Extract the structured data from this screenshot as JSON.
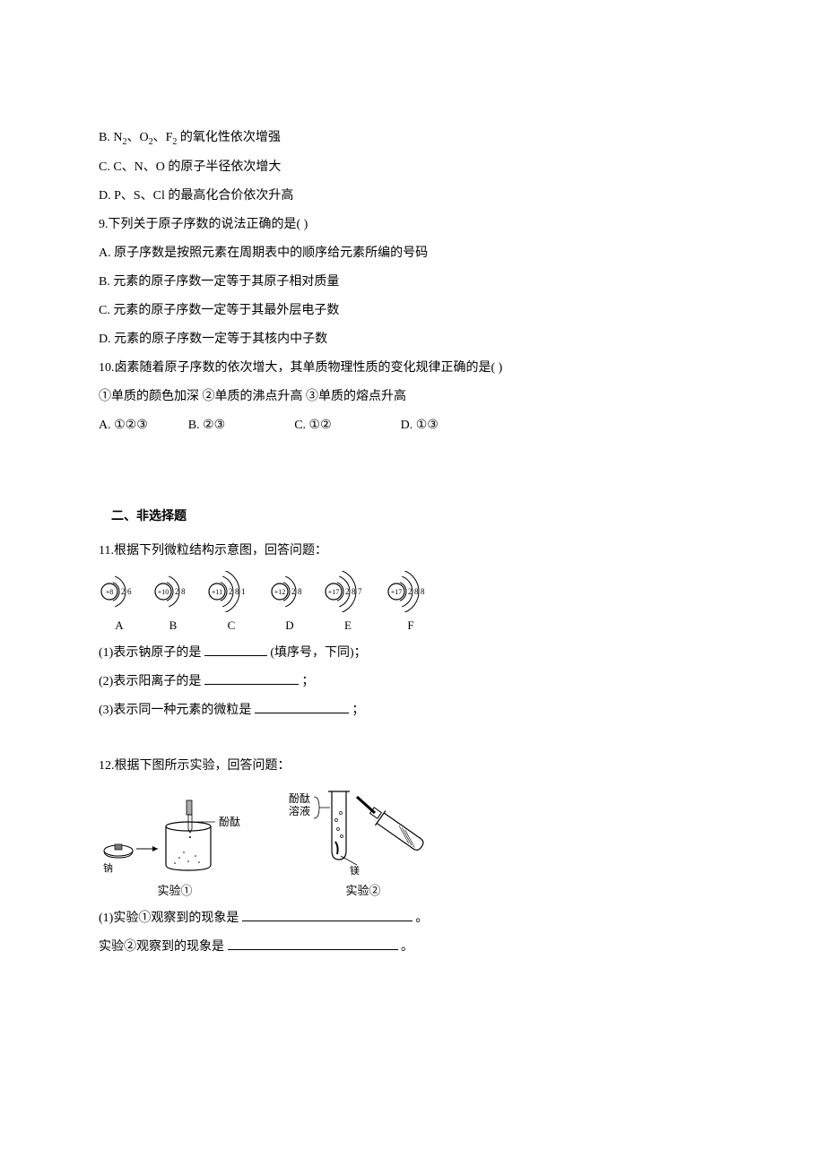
{
  "colors": {
    "text": "#000000",
    "bg": "#ffffff",
    "line": "#000000"
  },
  "font": {
    "family": "SimSun",
    "base_size": 14
  },
  "q8": {
    "opt_b_pre": "B.   N",
    "opt_b_mid1": "、O",
    "opt_b_mid2": "、F",
    "opt_b_post": " 的氧化性依次增强",
    "sub2": "2",
    "opt_c": "C.   C、N、O 的原子半径依次增大",
    "opt_d": "D.   P、S、Cl 的最高化合价依次升高"
  },
  "q9": {
    "stem": "9.下列关于原子序数的说法正确的是(    )",
    "opt_a": "A.   原子序数是按照元素在周期表中的顺序给元素所编的号码",
    "opt_b": "B.   元素的原子序数一定等于其原子相对质量",
    "opt_c": "C.   元素的原子序数一定等于其最外层电子数",
    "opt_d": "D.   元素的原子序数一定等于其核内中子数"
  },
  "q10": {
    "stem": "10.卤素随着原子序数的依次增大，其单质物理性质的变化规律正确的是(     )",
    "line2": "①单质的颜色加深   ②单质的沸点升高   ③单质的熔点升高",
    "a_label": "A.   ①②③",
    "b_label": "B.   ②③",
    "c_label": "C.   ①②",
    "d_label": "D.   ①③",
    "gap_ab": 38,
    "gap_bc": 70,
    "gap_cd": 70
  },
  "section2": "二、非选择题",
  "q11": {
    "stem": "11.根据下列微粒结构示意图，回答问题：",
    "atoms": [
      {
        "label": "A",
        "nucleus": "+8",
        "shells": [
          2,
          6
        ]
      },
      {
        "label": "B",
        "nucleus": "+10",
        "shells": [
          2,
          8
        ]
      },
      {
        "label": "C",
        "nucleus": "+11",
        "shells": [
          2,
          8,
          1
        ]
      },
      {
        "label": "D",
        "nucleus": "+12",
        "shells": [
          2,
          8
        ]
      },
      {
        "label": "E",
        "nucleus": "+17",
        "shells": [
          2,
          8,
          7
        ]
      },
      {
        "label": "F",
        "nucleus": "+17",
        "shells": [
          2,
          8,
          8
        ]
      }
    ],
    "p1_pre": "(1)表示钠原子的是",
    "p1_post": "(填序号，下同)；",
    "p1_ulw": 70,
    "p2_pre": "(2)表示阳离子的是",
    "p2_post": "；",
    "p2_ulw": 105,
    "p3_pre": "(3)表示同一种元素的微粒是",
    "p3_post": "；",
    "p3_ulw": 105
  },
  "q12": {
    "stem": "12.根据下图所示实验，回答问题：",
    "exp1_label": "实验①",
    "exp2_label": "实验②",
    "na_label": "钠",
    "mg_label": "镁",
    "phenol": "酚酞",
    "phenol_sol": "酚酞\n溶液",
    "p1_pre": "(1)实验①观察到的现象是",
    "p1_ulw": 190,
    "p1_post": "。",
    "p2_pre": "实验②观察到的现象是",
    "p2_ulw": 190,
    "p2_post": "。"
  }
}
